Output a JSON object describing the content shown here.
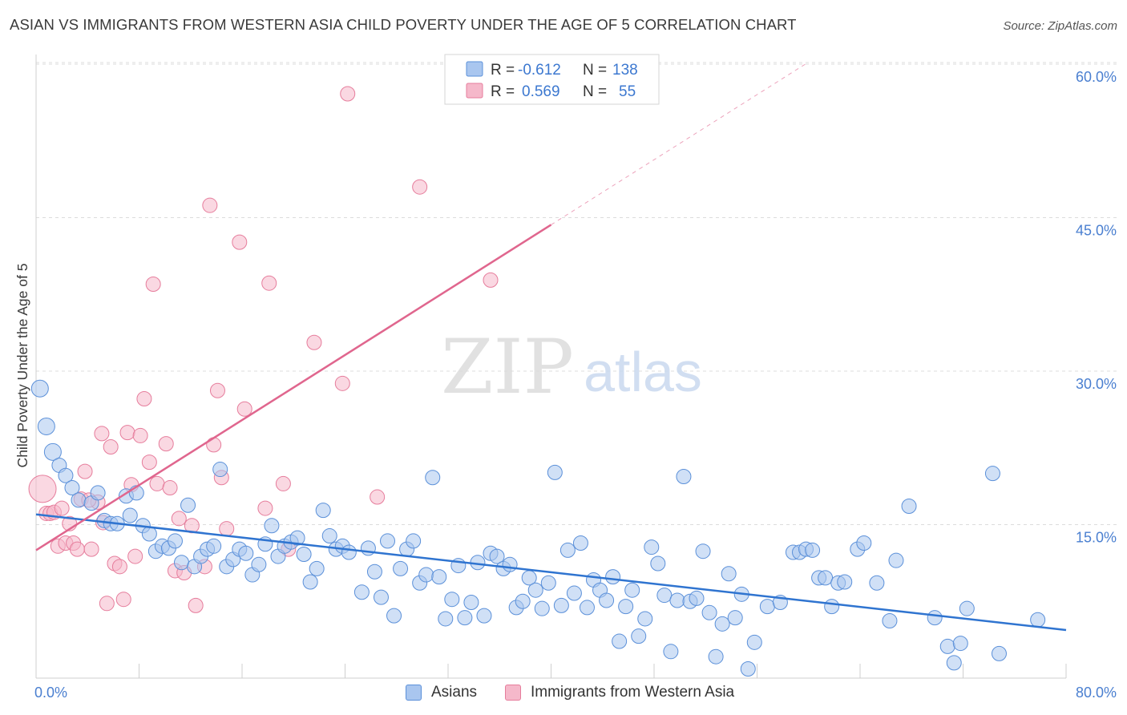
{
  "title": "ASIAN VS IMMIGRANTS FROM WESTERN ASIA CHILD POVERTY UNDER THE AGE OF 5 CORRELATION CHART",
  "source": "Source: ZipAtlas.com",
  "watermark": {
    "zip": "ZIP",
    "atlas": "atlas"
  },
  "colors": {
    "blue_fill": "#a9c6ef",
    "blue_stroke": "#5b90d9",
    "blue_line": "#2f74d0",
    "pink_fill": "#f5b8ca",
    "pink_stroke": "#e67d9c",
    "pink_line": "#e0668e",
    "axis_text": "#4a7fd0",
    "grid": "#dcdcdc"
  },
  "legend_box": {
    "rows": [
      {
        "r_label": "R =",
        "r_value": "-0.612",
        "n_label": "N =",
        "n_value": "138",
        "series": "blue"
      },
      {
        "r_label": "R =",
        "r_value": "0.569",
        "n_label": "N =",
        "n_value": "55",
        "series": "pink"
      }
    ]
  },
  "bottom_legend": [
    {
      "label": "Asians",
      "series": "blue"
    },
    {
      "label": "Immigrants from Western Asia",
      "series": "pink"
    }
  ],
  "chart_data": {
    "type": "scatter",
    "title": "ASIAN VS IMMIGRANTS FROM WESTERN ASIA CHILD POVERTY UNDER THE AGE OF 5 CORRELATION CHART",
    "xlabel": "",
    "ylabel": "Child Poverty Under the Age of 5",
    "xlim": [
      0,
      80
    ],
    "ylim": [
      0,
      60
    ],
    "x_tick_labels": [
      "0.0%",
      "80.0%"
    ],
    "y_ticks": [
      15,
      30,
      45,
      60
    ],
    "y_tick_labels": [
      "15.0%",
      "30.0%",
      "45.0%",
      "60.0%"
    ],
    "grid": true,
    "legend_position": "top-center",
    "series": [
      {
        "name": "Asians",
        "color": "blue",
        "points": [
          [
            0.3,
            28.3
          ],
          [
            0.8,
            24.6
          ],
          [
            1.3,
            22.1
          ],
          [
            1.8,
            20.8
          ],
          [
            2.3,
            19.8
          ],
          [
            2.8,
            18.6
          ],
          [
            3.3,
            17.4
          ],
          [
            4.3,
            17.1
          ],
          [
            4.8,
            18.1
          ],
          [
            5.3,
            15.4
          ],
          [
            5.8,
            15.1
          ],
          [
            6.3,
            15.1
          ],
          [
            7.0,
            17.8
          ],
          [
            7.3,
            15.9
          ],
          [
            7.8,
            18.1
          ],
          [
            8.3,
            14.9
          ],
          [
            8.8,
            14.1
          ],
          [
            9.3,
            12.4
          ],
          [
            9.8,
            12.9
          ],
          [
            10.3,
            12.7
          ],
          [
            10.8,
            13.4
          ],
          [
            11.3,
            11.3
          ],
          [
            11.8,
            16.9
          ],
          [
            12.3,
            10.9
          ],
          [
            12.8,
            11.9
          ],
          [
            13.3,
            12.6
          ],
          [
            13.8,
            12.9
          ],
          [
            14.3,
            20.4
          ],
          [
            14.8,
            10.9
          ],
          [
            15.3,
            11.6
          ],
          [
            15.8,
            12.6
          ],
          [
            16.3,
            12.2
          ],
          [
            16.8,
            10.1
          ],
          [
            17.3,
            11.1
          ],
          [
            17.8,
            13.1
          ],
          [
            18.3,
            14.9
          ],
          [
            18.8,
            11.9
          ],
          [
            19.3,
            12.9
          ],
          [
            19.8,
            13.3
          ],
          [
            20.3,
            13.7
          ],
          [
            20.8,
            12.1
          ],
          [
            21.3,
            9.4
          ],
          [
            21.8,
            10.7
          ],
          [
            22.3,
            16.4
          ],
          [
            22.8,
            13.9
          ],
          [
            23.3,
            12.6
          ],
          [
            23.8,
            12.9
          ],
          [
            24.3,
            12.3
          ],
          [
            25.3,
            8.4
          ],
          [
            25.8,
            12.7
          ],
          [
            26.3,
            10.4
          ],
          [
            26.8,
            7.9
          ],
          [
            27.3,
            13.4
          ],
          [
            27.8,
            6.1
          ],
          [
            28.3,
            10.7
          ],
          [
            28.8,
            12.6
          ],
          [
            29.3,
            13.4
          ],
          [
            29.8,
            9.3
          ],
          [
            30.3,
            10.1
          ],
          [
            30.8,
            19.6
          ],
          [
            31.3,
            9.9
          ],
          [
            31.8,
            5.8
          ],
          [
            32.3,
            7.7
          ],
          [
            32.8,
            11.0
          ],
          [
            33.3,
            5.9
          ],
          [
            33.8,
            7.4
          ],
          [
            34.3,
            11.3
          ],
          [
            34.8,
            6.1
          ],
          [
            35.3,
            12.2
          ],
          [
            35.8,
            11.9
          ],
          [
            36.3,
            10.7
          ],
          [
            36.8,
            11.1
          ],
          [
            37.3,
            6.9
          ],
          [
            37.8,
            7.5
          ],
          [
            38.3,
            9.8
          ],
          [
            38.8,
            8.6
          ],
          [
            39.3,
            6.8
          ],
          [
            39.8,
            9.3
          ],
          [
            40.3,
            20.1
          ],
          [
            40.8,
            7.1
          ],
          [
            41.3,
            12.5
          ],
          [
            41.8,
            8.3
          ],
          [
            42.3,
            13.2
          ],
          [
            42.8,
            6.9
          ],
          [
            43.3,
            9.6
          ],
          [
            43.8,
            8.6
          ],
          [
            44.3,
            7.6
          ],
          [
            44.8,
            9.9
          ],
          [
            45.3,
            3.6
          ],
          [
            45.8,
            7.0
          ],
          [
            46.3,
            8.6
          ],
          [
            46.8,
            4.1
          ],
          [
            47.3,
            5.8
          ],
          [
            47.8,
            12.8
          ],
          [
            48.3,
            11.2
          ],
          [
            48.8,
            8.1
          ],
          [
            49.3,
            2.6
          ],
          [
            49.8,
            7.6
          ],
          [
            50.3,
            19.7
          ],
          [
            50.8,
            7.5
          ],
          [
            51.3,
            7.8
          ],
          [
            51.8,
            12.4
          ],
          [
            52.3,
            6.4
          ],
          [
            52.8,
            2.1
          ],
          [
            53.3,
            5.3
          ],
          [
            53.8,
            10.2
          ],
          [
            54.3,
            5.9
          ],
          [
            54.8,
            8.2
          ],
          [
            55.8,
            3.5
          ],
          [
            56.8,
            7.0
          ],
          [
            57.8,
            7.4
          ],
          [
            58.8,
            12.3
          ],
          [
            59.3,
            12.3
          ],
          [
            59.8,
            12.6
          ],
          [
            60.3,
            12.5
          ],
          [
            60.8,
            9.8
          ],
          [
            61.3,
            9.8
          ],
          [
            61.8,
            7.0
          ],
          [
            62.3,
            9.3
          ],
          [
            62.8,
            9.4
          ],
          [
            63.8,
            12.6
          ],
          [
            64.3,
            13.2
          ],
          [
            65.3,
            9.3
          ],
          [
            66.3,
            5.6
          ],
          [
            66.8,
            11.5
          ],
          [
            67.8,
            16.8
          ],
          [
            69.8,
            5.9
          ],
          [
            70.8,
            3.1
          ],
          [
            71.3,
            1.5
          ],
          [
            71.8,
            3.4
          ],
          [
            72.3,
            6.8
          ],
          [
            74.3,
            20.0
          ],
          [
            74.8,
            2.4
          ],
          [
            77.8,
            5.7
          ],
          [
            55.3,
            0.9
          ]
        ]
      },
      {
        "name": "Immigrants from Western Asia",
        "color": "pink",
        "points": [
          [
            0.5,
            18.5
          ],
          [
            0.8,
            16.1
          ],
          [
            1.1,
            16.1
          ],
          [
            1.4,
            16.2
          ],
          [
            1.7,
            12.9
          ],
          [
            2.0,
            16.6
          ],
          [
            2.3,
            13.2
          ],
          [
            2.6,
            15.1
          ],
          [
            2.9,
            13.2
          ],
          [
            3.2,
            12.6
          ],
          [
            3.5,
            17.5
          ],
          [
            3.8,
            20.2
          ],
          [
            4.3,
            12.6
          ],
          [
            4.8,
            17.2
          ],
          [
            5.1,
            23.9
          ],
          [
            5.5,
            7.3
          ],
          [
            5.8,
            22.6
          ],
          [
            6.1,
            11.2
          ],
          [
            6.5,
            10.9
          ],
          [
            6.8,
            7.7
          ],
          [
            7.1,
            24.0
          ],
          [
            7.4,
            18.9
          ],
          [
            7.7,
            11.9
          ],
          [
            8.1,
            23.7
          ],
          [
            8.4,
            27.3
          ],
          [
            8.8,
            21.1
          ],
          [
            9.1,
            38.5
          ],
          [
            9.4,
            19.0
          ],
          [
            10.1,
            22.9
          ],
          [
            10.4,
            18.6
          ],
          [
            10.8,
            10.5
          ],
          [
            11.1,
            15.6
          ],
          [
            11.5,
            10.3
          ],
          [
            12.1,
            14.9
          ],
          [
            12.4,
            7.1
          ],
          [
            13.1,
            10.9
          ],
          [
            13.5,
            46.2
          ],
          [
            13.8,
            22.8
          ],
          [
            14.1,
            28.1
          ],
          [
            14.4,
            19.6
          ],
          [
            14.8,
            14.6
          ],
          [
            15.8,
            42.6
          ],
          [
            16.2,
            26.3
          ],
          [
            17.8,
            16.6
          ],
          [
            18.1,
            38.6
          ],
          [
            19.2,
            19.0
          ],
          [
            19.6,
            12.6
          ],
          [
            21.6,
            32.8
          ],
          [
            23.8,
            28.8
          ],
          [
            26.5,
            17.7
          ],
          [
            29.8,
            48.0
          ],
          [
            35.3,
            38.9
          ],
          [
            24.2,
            57.1
          ],
          [
            4.1,
            17.4
          ],
          [
            5.2,
            15.2
          ]
        ]
      }
    ],
    "trendlines": [
      {
        "series": "Asians",
        "x": [
          0,
          80
        ],
        "y": [
          16.0,
          4.7
        ]
      },
      {
        "series": "Immigrants from Western Asia",
        "x": [
          0,
          40
        ],
        "y": [
          12.5,
          44.3
        ],
        "dashed_extension": {
          "x": [
            40,
            60
          ],
          "y": [
            44.3,
            60.2
          ]
        }
      }
    ]
  }
}
